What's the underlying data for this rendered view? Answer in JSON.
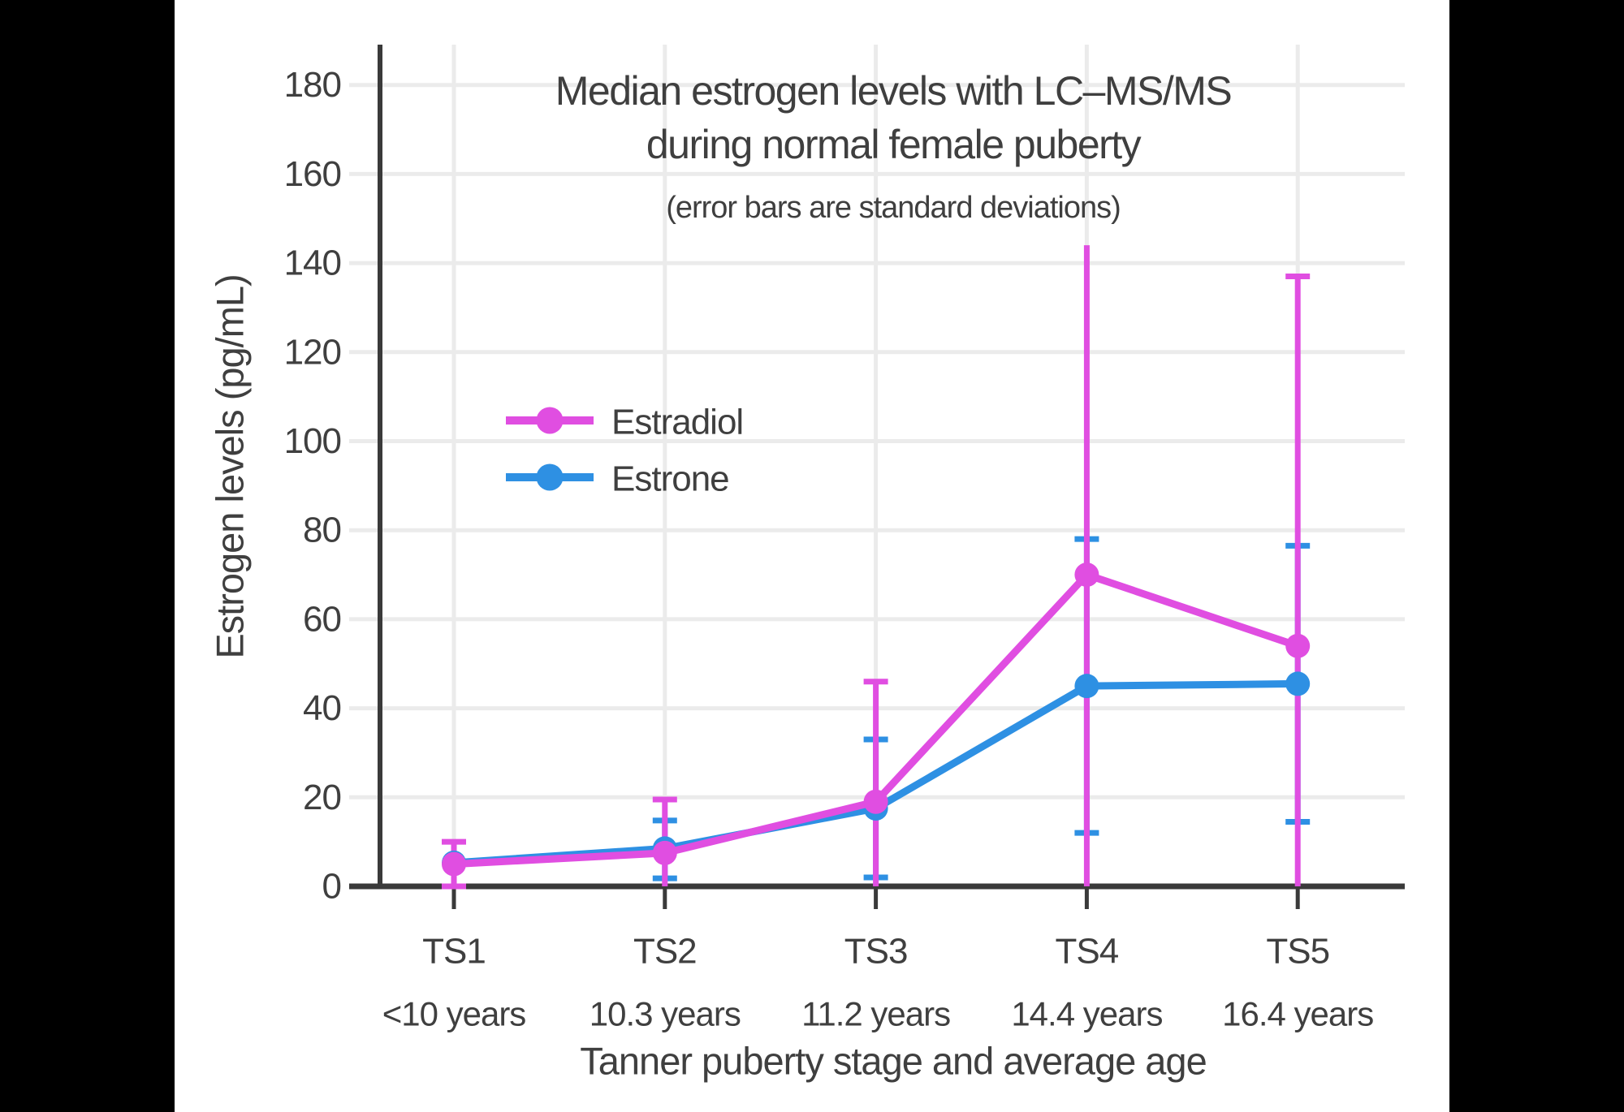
{
  "display": {
    "title_line1": "Median estrogen levels with LC–MS/MS",
    "title_line2": "during normal female puberty",
    "subtitle": "(error bars are standard deviations)",
    "y_axis_title": "Estrogen levels (pg/mL)",
    "x_axis_title": "Tanner puberty stage and average age"
  },
  "colors": {
    "estradiol": "#E04EE1",
    "estrone": "#2E90E3",
    "text": "#3F3F3F",
    "axis": "#3A3A3A",
    "gridline": "#EBEBEB",
    "panel_background": "#FFFFFF",
    "letterbox": "#000000"
  },
  "chart_data": {
    "type": "line",
    "title": "Median estrogen levels with LC–MS/MS during normal female puberty",
    "subtitle": "(error bars are standard deviations)",
    "xlabel": "Tanner puberty stage and average age",
    "ylabel": "Estrogen levels (pg/mL)",
    "ylim": [
      0,
      190
    ],
    "yticks": [
      0,
      20,
      40,
      60,
      80,
      100,
      120,
      140,
      160,
      180
    ],
    "grid": true,
    "legend_position": "upper left inside",
    "categories": [
      "TS1",
      "TS2",
      "TS3",
      "TS4",
      "TS5"
    ],
    "category_sublabels": [
      "<10 years",
      "10.3 years",
      "11.2 years",
      "14.4 years",
      "16.4 years"
    ],
    "series": [
      {
        "name": "Estradiol",
        "color": "#E04EE1",
        "values": [
          5,
          7.5,
          19,
          70,
          54
        ],
        "err_top": [
          10,
          19.5,
          46,
          144,
          137
        ],
        "err_bottom": [
          0,
          0,
          0,
          0,
          0
        ],
        "cap_top": [
          true,
          true,
          true,
          false,
          true
        ],
        "cap_bottom": [
          true,
          false,
          false,
          false,
          false
        ]
      },
      {
        "name": "Estrone",
        "color": "#2E90E3",
        "values": [
          5.3,
          8.5,
          17.5,
          45,
          45.5
        ],
        "err_top": [
          10,
          14.8,
          33,
          78,
          76.5
        ],
        "err_bottom": [
          0,
          1.8,
          2,
          12,
          14.5
        ],
        "cap_top": [
          false,
          true,
          true,
          true,
          true
        ],
        "cap_bottom": [
          false,
          true,
          true,
          true,
          true
        ]
      }
    ]
  }
}
